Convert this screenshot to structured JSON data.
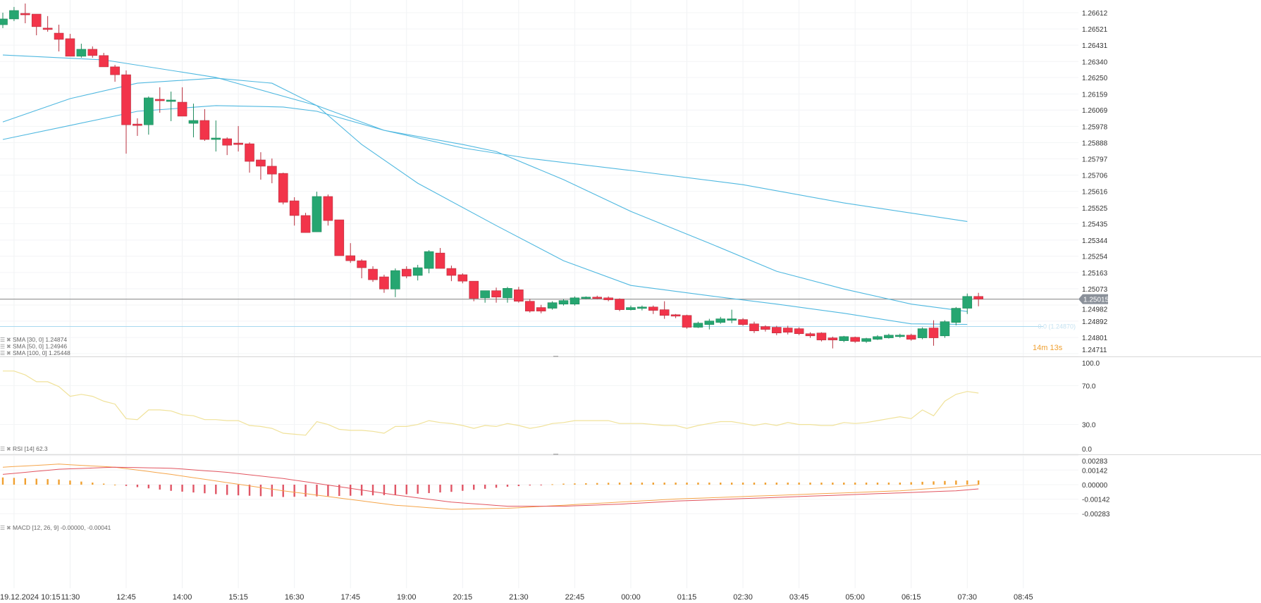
{
  "chart_data": [
    {
      "type": "candlestick",
      "panel": "price",
      "interval": "15m",
      "start_date": "19.12.2024",
      "first_time": "10:00",
      "y_ticks": [
        "1.26612",
        "1.26521",
        "1.26431",
        "1.26340",
        "1.26250",
        "1.26159",
        "1.26069",
        "1.25978",
        "1.25888",
        "1.25797",
        "1.25706",
        "1.25616",
        "1.25525",
        "1.25435",
        "1.25344",
        "1.25254",
        "1.25163",
        "1.25073",
        "1.24982",
        "1.24892",
        "1.24801",
        "1.24711"
      ],
      "ylim": [
        1.24711,
        1.26612
      ],
      "candles_ohlc": [
        [
          1.26545,
          1.26612,
          1.26526,
          1.26577
        ],
        [
          1.26577,
          1.26644,
          1.26565,
          1.26624
        ],
        [
          1.26608,
          1.26663,
          1.26553,
          1.266
        ],
        [
          1.26604,
          1.26604,
          1.26486,
          1.26534
        ],
        [
          1.26526,
          1.26593,
          1.26506,
          1.26522
        ],
        [
          1.26498,
          1.26545,
          1.26396,
          1.26463
        ],
        [
          1.26467,
          1.26494,
          1.26369,
          1.26369
        ],
        [
          1.26369,
          1.26439,
          1.26361,
          1.26408
        ],
        [
          1.26408,
          1.26424,
          1.26361,
          1.26373
        ],
        [
          1.26373,
          1.26388,
          1.2631,
          1.2631
        ],
        [
          1.2631,
          1.26321,
          1.26227,
          1.26266
        ],
        [
          1.26266,
          1.2629,
          1.25826,
          1.25987
        ],
        [
          1.25991,
          1.26023,
          1.25925,
          1.25987
        ],
        [
          1.25987,
          1.26145,
          1.25932,
          1.26137
        ],
        [
          1.26129,
          1.26196,
          1.26054,
          1.26121
        ],
        [
          1.26117,
          1.26172,
          1.26007,
          1.26125
        ],
        [
          1.26113,
          1.26196,
          1.26035,
          1.26035
        ],
        [
          1.25995,
          1.26105,
          1.25917,
          1.26011
        ],
        [
          1.26011,
          1.26074,
          1.25897,
          1.25905
        ],
        [
          1.25905,
          1.26011,
          1.25838,
          1.25913
        ],
        [
          1.25909,
          1.25917,
          1.25818,
          1.25873
        ],
        [
          1.25885,
          1.2598,
          1.25838,
          1.25877
        ],
        [
          1.25881,
          1.25889,
          1.2572,
          1.25783
        ],
        [
          1.25791,
          1.25834,
          1.25681,
          1.25756
        ],
        [
          1.25756,
          1.25799,
          1.25661,
          1.25712
        ],
        [
          1.25716,
          1.2572,
          1.25543,
          1.25555
        ],
        [
          1.25563,
          1.25583,
          1.25425,
          1.25481
        ],
        [
          1.25481,
          1.25496,
          1.25386,
          1.25386
        ],
        [
          1.2539,
          1.25614,
          1.2539,
          1.25587
        ],
        [
          1.25587,
          1.25598,
          1.25425,
          1.25453
        ],
        [
          1.25457,
          1.25457,
          1.25257,
          1.25257
        ],
        [
          1.25257,
          1.25327,
          1.25217,
          1.25229
        ],
        [
          1.25229,
          1.25237,
          1.25131,
          1.2519
        ],
        [
          1.25182,
          1.25198,
          1.25111,
          1.25123
        ],
        [
          1.25139,
          1.25151,
          1.2505,
          1.25071
        ],
        [
          1.25071,
          1.25186,
          1.25026,
          1.25174
        ],
        [
          1.25182,
          1.25198,
          1.25131,
          1.25143
        ],
        [
          1.25147,
          1.25206,
          1.25119,
          1.2519
        ],
        [
          1.25186,
          1.25288,
          1.25159,
          1.2528
        ],
        [
          1.25272,
          1.253,
          1.25186,
          1.25186
        ],
        [
          1.25186,
          1.25202,
          1.25115,
          1.25147
        ],
        [
          1.25151,
          1.25159,
          1.25103,
          1.25115
        ],
        [
          1.25115,
          1.25115,
          1.25003,
          1.25019
        ],
        [
          1.25022,
          1.25062,
          1.24995,
          1.25062
        ],
        [
          1.25062,
          1.25079,
          1.24995,
          1.25026
        ],
        [
          1.25022,
          1.25083,
          1.24995,
          1.25075
        ],
        [
          1.25067,
          1.25083,
          1.24995,
          1.25003
        ],
        [
          1.25003,
          1.25015,
          1.2494,
          1.24948
        ],
        [
          1.24968,
          1.24983,
          1.24936,
          1.24948
        ],
        [
          1.24964,
          1.25003,
          1.24956,
          1.24995
        ],
        [
          1.24987,
          1.25015,
          1.24979,
          1.25007
        ],
        [
          1.24987,
          1.2503,
          1.24979,
          1.25022
        ],
        [
          1.25022,
          1.2503,
          1.25015,
          1.25026
        ],
        [
          1.25026,
          1.25034,
          1.25015,
          1.25019
        ],
        [
          1.25022,
          1.2503,
          1.25003,
          1.25011
        ],
        [
          1.25015,
          1.25019,
          1.24948,
          1.24956
        ],
        [
          1.24956,
          1.24979,
          1.24952,
          1.24968
        ],
        [
          1.24964,
          1.24979,
          1.24952,
          1.24971
        ],
        [
          1.24971,
          1.24979,
          1.24932,
          1.24952
        ],
        [
          1.24956,
          1.25003,
          1.24905,
          1.24924
        ],
        [
          1.24928,
          1.24932,
          1.24909,
          1.2492
        ],
        [
          1.24924,
          1.24928,
          1.2485,
          1.24858
        ],
        [
          1.24858,
          1.24889,
          1.24854,
          1.24881
        ],
        [
          1.24873,
          1.24905,
          1.24846,
          1.24893
        ],
        [
          1.24885,
          1.24916,
          1.24877,
          1.24905
        ],
        [
          1.24897,
          1.24956,
          1.24881,
          1.24905
        ],
        [
          1.24901,
          1.24909,
          1.24866,
          1.24873
        ],
        [
          1.24877,
          1.24889,
          1.24826,
          1.24838
        ],
        [
          1.24862,
          1.24869,
          1.24834,
          1.24846
        ],
        [
          1.24858,
          1.24866,
          1.24814,
          1.24826
        ],
        [
          1.24854,
          1.24866,
          1.24818,
          1.2483
        ],
        [
          1.2485,
          1.24858,
          1.24814,
          1.24822
        ],
        [
          1.24822,
          1.2483,
          1.24799,
          1.2481
        ],
        [
          1.24826,
          1.2483,
          1.24779,
          1.24787
        ],
        [
          1.24799,
          1.24806,
          1.2474,
          1.24787
        ],
        [
          1.24783,
          1.2481,
          1.24775,
          1.24806
        ],
        [
          1.24802,
          1.24806,
          1.24771,
          1.24779
        ],
        [
          1.24779,
          1.24799,
          1.24771,
          1.24795
        ],
        [
          1.24791,
          1.24814,
          1.24787,
          1.24806
        ],
        [
          1.24799,
          1.24822,
          1.24795,
          1.24814
        ],
        [
          1.24806,
          1.24822,
          1.24799,
          1.24814
        ],
        [
          1.24814,
          1.24822,
          1.24783,
          1.24791
        ],
        [
          1.24799,
          1.24858,
          1.24791,
          1.2485
        ],
        [
          1.24854,
          1.24897,
          1.24755,
          1.24799
        ],
        [
          1.2481,
          1.24897,
          1.24799,
          1.24889
        ],
        [
          1.24885,
          1.24971,
          1.24869,
          1.24964
        ],
        [
          1.24964,
          1.25046,
          1.24932,
          1.2503
        ],
        [
          1.2503,
          1.2505,
          1.24975,
          1.25015
        ]
      ],
      "series": [
        {
          "name": "SMA [30, 0]",
          "last": "1.24874",
          "color": "#4fb8e0",
          "points": [
            [
              "10:00",
              1.26003
            ],
            [
              "11:30",
              1.26133
            ],
            [
              "13:00",
              1.26219
            ],
            [
              "14:45",
              1.26247
            ],
            [
              "16:00",
              1.26219
            ],
            [
              "17:00",
              1.26094
            ],
            [
              "18:00",
              1.25877
            ],
            [
              "19:15",
              1.25661
            ],
            [
              "21:00",
              1.25425
            ],
            [
              "22:30",
              1.25229
            ],
            [
              "00:00",
              1.25091
            ],
            [
              "01:45",
              1.25034
            ],
            [
              "03:15",
              1.24987
            ],
            [
              "04:45",
              1.24936
            ],
            [
              "06:15",
              1.24877
            ],
            [
              "07:30",
              1.24874
            ]
          ]
        },
        {
          "name": "SMA [50, 0]",
          "last": "1.24946",
          "color": "#4fb8e0",
          "points": [
            [
              "10:00",
              1.25905
            ],
            [
              "11:30",
              1.25983
            ],
            [
              "13:00",
              1.26062
            ],
            [
              "14:45",
              1.26094
            ],
            [
              "16:15",
              1.26086
            ],
            [
              "17:00",
              1.26062
            ],
            [
              "18:30",
              1.25956
            ],
            [
              "20:15",
              1.25877
            ],
            [
              "21:00",
              1.25838
            ],
            [
              "22:30",
              1.25681
            ],
            [
              "00:00",
              1.25504
            ],
            [
              "01:45",
              1.25327
            ],
            [
              "03:15",
              1.2517
            ],
            [
              "04:45",
              1.25071
            ],
            [
              "06:15",
              1.24987
            ],
            [
              "07:30",
              1.24946
            ]
          ]
        },
        {
          "name": "SMA [100, 0]",
          "last": "1.25448",
          "color": "#4fb8e0",
          "points": [
            [
              "10:00",
              1.26376
            ],
            [
              "12:15",
              1.26349
            ],
            [
              "14:45",
              1.26251
            ],
            [
              "17:00",
              1.26094
            ],
            [
              "18:30",
              1.25956
            ],
            [
              "20:15",
              1.25858
            ],
            [
              "21:45",
              1.25799
            ],
            [
              "00:00",
              1.25732
            ],
            [
              "02:30",
              1.25653
            ],
            [
              "04:45",
              1.25551
            ],
            [
              "07:30",
              1.25448
            ]
          ]
        }
      ],
      "current_price": "1.25015",
      "horizontal_line": {
        "label": "0.0 (1.24870)",
        "value": 1.2487,
        "color": "#a8d8f0"
      },
      "countdown": "14m 13s",
      "colors": {
        "up": "#26a671",
        "down": "#f2344a",
        "sma": "#4fb8e0",
        "price_tag": "#8a9099"
      }
    },
    {
      "type": "line",
      "panel": "rsi",
      "name": "RSI [14]",
      "last": "62.3",
      "y_ticks": [
        "100.0",
        "70.0",
        "30.0",
        "0.0"
      ],
      "ylim": [
        0,
        100
      ],
      "color": "#f0e29a",
      "values": [
        85,
        85,
        81,
        74,
        74,
        69,
        59,
        61,
        59,
        54,
        51,
        36,
        35,
        45,
        45,
        44,
        40,
        39,
        35,
        35,
        34,
        34,
        29,
        28,
        26,
        21,
        20,
        19,
        33,
        30,
        25,
        24,
        24,
        23,
        21,
        28,
        28,
        30,
        34,
        32,
        31,
        29,
        26,
        29,
        28,
        31,
        29,
        26,
        28,
        31,
        32,
        34,
        34,
        34,
        34,
        31,
        31,
        31,
        30,
        29,
        29,
        26,
        29,
        31,
        33,
        33,
        31,
        29,
        31,
        29,
        32,
        30,
        30,
        29,
        29,
        32,
        31,
        32,
        34,
        36,
        38,
        36,
        45,
        39,
        54,
        61,
        64,
        62.3
      ]
    },
    {
      "type": "line+bar",
      "panel": "macd",
      "name": "MACD [12, 26, 9]",
      "last": "-0.00000, -0.00041",
      "y_ticks": [
        "0.00283",
        "0.00142",
        "0.00000",
        "-0.00142",
        "-0.00283"
      ],
      "ylim": [
        -0.00283,
        0.00283
      ],
      "macd_color": "#f5a54a",
      "signal_color": "#e2545f",
      "macd": [
        [
          "10:00",
          0.0017
        ],
        [
          "11:15",
          0.002
        ],
        [
          "12:30",
          0.0017
        ],
        [
          "13:45",
          0.001
        ],
        [
          "15:00",
          0.0002
        ],
        [
          "16:15",
          -0.0006
        ],
        [
          "17:30",
          -0.0013
        ],
        [
          "18:45",
          -0.002
        ],
        [
          "20:00",
          -0.0024
        ],
        [
          "21:15",
          -0.0023
        ],
        [
          "22:30",
          -0.002
        ],
        [
          "23:45",
          -0.0017
        ],
        [
          "01:00",
          -0.0014
        ],
        [
          "02:15",
          -0.0012
        ],
        [
          "03:30",
          -0.001
        ],
        [
          "04:45",
          -0.0008
        ],
        [
          "06:00",
          -0.0006
        ],
        [
          "07:15",
          -0.0002
        ],
        [
          "07:45",
          0.0
        ]
      ],
      "signal": [
        [
          "10:00",
          0.001
        ],
        [
          "11:15",
          0.0015
        ],
        [
          "12:30",
          0.0017
        ],
        [
          "13:45",
          0.0016
        ],
        [
          "15:00",
          0.0012
        ],
        [
          "16:15",
          0.0006
        ],
        [
          "17:30",
          -0.0002
        ],
        [
          "18:45",
          -0.001
        ],
        [
          "20:00",
          -0.0017
        ],
        [
          "21:15",
          -0.0021
        ],
        [
          "22:30",
          -0.0021
        ],
        [
          "23:45",
          -0.0019
        ],
        [
          "01:00",
          -0.0016
        ],
        [
          "02:15",
          -0.0014
        ],
        [
          "03:30",
          -0.0012
        ],
        [
          "04:45",
          -0.001
        ],
        [
          "06:00",
          -0.0008
        ],
        [
          "07:15",
          -0.0006
        ],
        [
          "07:45",
          -0.00041
        ]
      ],
      "hist_colors": {
        "positive": "#f0a030",
        "negative": "#e05565"
      }
    }
  ],
  "time_axis": {
    "date": "19.12.2024",
    "ticks": [
      "10:15",
      "11:30",
      "12:45",
      "14:00",
      "15:15",
      "16:30",
      "17:45",
      "19:00",
      "20:15",
      "21:30",
      "22:45",
      "00:00",
      "01:15",
      "02:30",
      "03:45",
      "05:00",
      "06:15",
      "07:30",
      "08:45"
    ]
  }
}
